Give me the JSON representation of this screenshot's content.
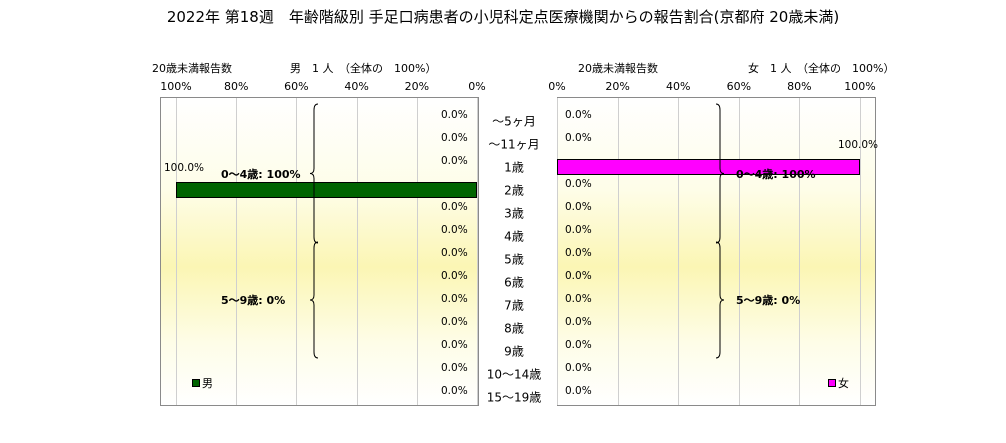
{
  "title": "2022年 第18週　年齢階級別 手足口病患者の小児科定点医療機関からの報告割合(京都府 20歳未満)",
  "chart_data": [
    {
      "type": "bar",
      "orientation": "horizontal",
      "direction": "right-to-left",
      "panel": "male",
      "subtitle_left": "20歳未満報告数",
      "subtitle_right": "男　1 人　（全体の　100%）",
      "xlim": [
        0,
        100
      ],
      "ticks": [
        "100%",
        "80%",
        "60%",
        "40%",
        "20%",
        "0%"
      ],
      "tick_values": [
        100,
        80,
        60,
        40,
        20,
        0
      ],
      "gridlines": true,
      "categories": [
        "～5ヶ月",
        "～11ヶ月",
        "1歳",
        "2歳",
        "3歳",
        "4歳",
        "5歳",
        "6歳",
        "7歳",
        "8歳",
        "9歳",
        "10～14歳",
        "15～19歳"
      ],
      "series": [
        {
          "name": "男",
          "color": "#006400",
          "values": [
            0,
            0,
            0,
            100,
            0,
            0,
            0,
            0,
            0,
            0,
            0,
            0,
            0
          ],
          "labels": [
            "0.0%",
            "0.0%",
            "0.0%",
            "100.0%",
            "0.0%",
            "0.0%",
            "0.0%",
            "0.0%",
            "0.0%",
            "0.0%",
            "0.0%",
            "0.0%",
            "0.0%"
          ]
        }
      ],
      "groups": [
        {
          "label": "0～4歳: 100%",
          "from": 0,
          "to": 5
        },
        {
          "label": "5～9歳: 0%",
          "from": 6,
          "to": 10
        }
      ],
      "legend": {
        "label": "男",
        "placement": "bottom-left"
      }
    },
    {
      "type": "bar",
      "orientation": "horizontal",
      "direction": "left-to-right",
      "panel": "female",
      "subtitle_left": "20歳未満報告数",
      "subtitle_right": "女　1 人　（全体の　100%）",
      "xlim": [
        0,
        100
      ],
      "ticks": [
        "0%",
        "20%",
        "40%",
        "60%",
        "80%",
        "100%"
      ],
      "tick_values": [
        0,
        20,
        40,
        60,
        80,
        100
      ],
      "gridlines": true,
      "categories": [
        "～5ヶ月",
        "～11ヶ月",
        "1歳",
        "2歳",
        "3歳",
        "4歳",
        "5歳",
        "6歳",
        "7歳",
        "8歳",
        "9歳",
        "10～14歳",
        "15～19歳"
      ],
      "series": [
        {
          "name": "女",
          "color": "#ff00ff",
          "values": [
            0,
            0,
            100,
            0,
            0,
            0,
            0,
            0,
            0,
            0,
            0,
            0,
            0
          ],
          "labels": [
            "0.0%",
            "0.0%",
            "100.0%",
            "0.0%",
            "0.0%",
            "0.0%",
            "0.0%",
            "0.0%",
            "0.0%",
            "0.0%",
            "0.0%",
            "0.0%",
            "0.0%"
          ]
        }
      ],
      "groups": [
        {
          "label": "0～4歳: 100%",
          "from": 0,
          "to": 5
        },
        {
          "label": "5～9歳: 0%",
          "from": 6,
          "to": 10
        }
      ],
      "legend": {
        "label": "女",
        "placement": "bottom-right"
      }
    }
  ]
}
